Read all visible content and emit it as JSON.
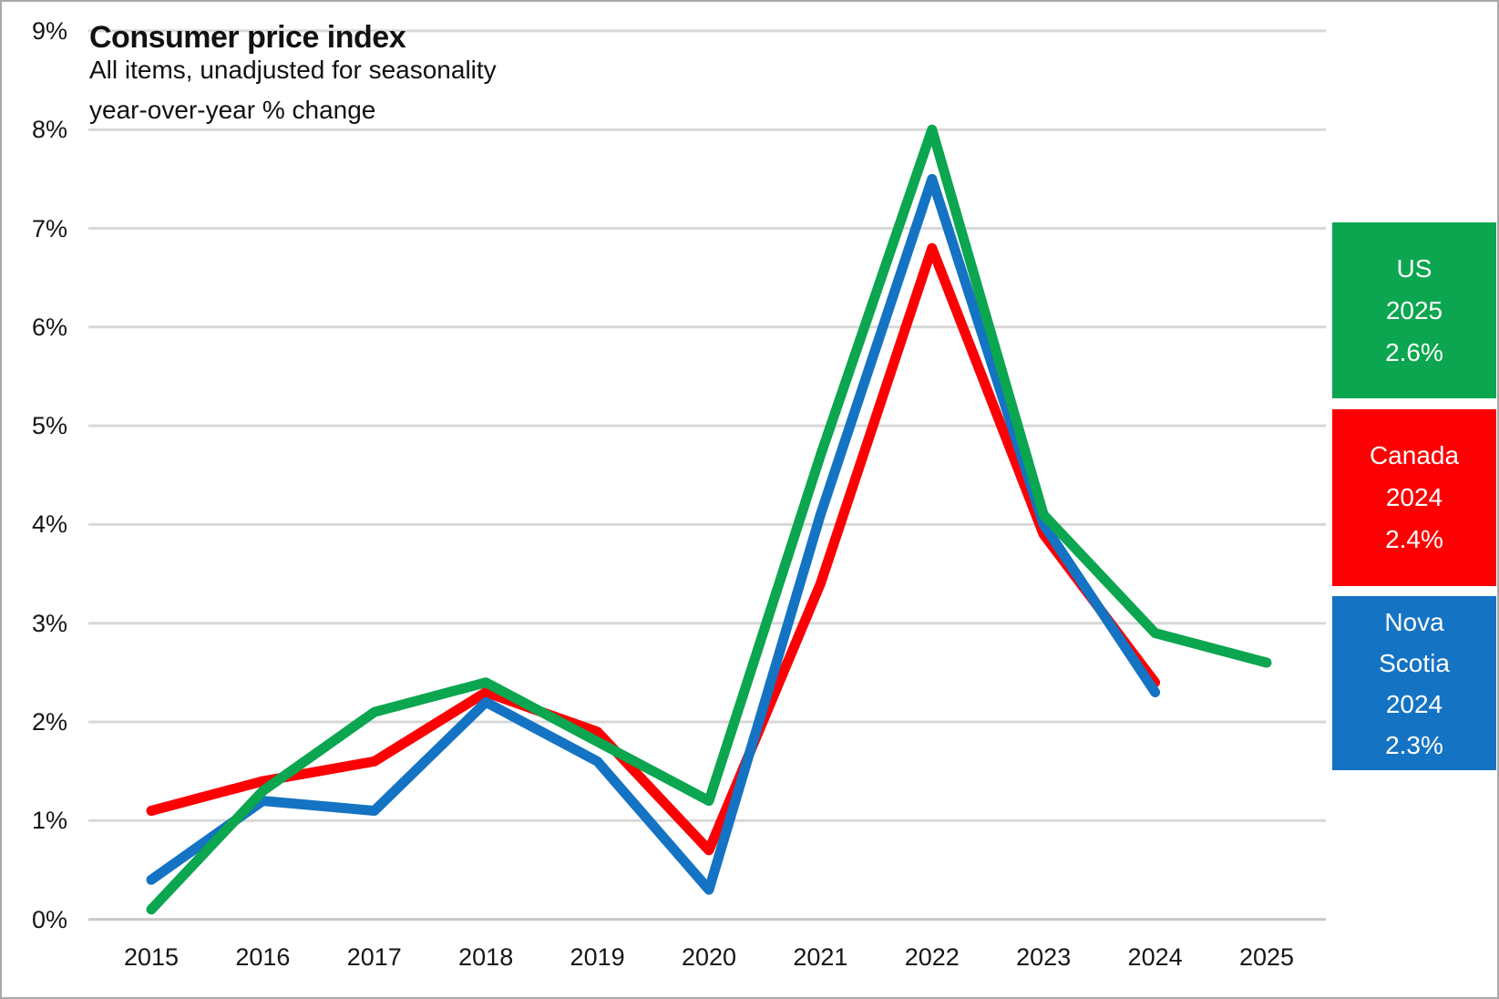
{
  "title": "Consumer price index",
  "subtitle_line1": "All items, unadjusted for seasonality",
  "subtitle_line2": "year-over-year % change",
  "colors": {
    "us_green": "#0BA64F",
    "canada_red": "#FB0104",
    "nova_scotia_blue": "#1573C4",
    "gridline": "#D8D8D8",
    "baseline": "#C9C9C9",
    "axis_text": "#161616",
    "legend_text": "#FFFFFF",
    "background": "#FFFFFF",
    "frame_border": "#A9A9A9"
  },
  "chart_data": {
    "type": "line",
    "title": "Consumer price index",
    "subtitle": "All items, unadjusted for seasonality year-over-year % change",
    "x": [
      2015,
      2016,
      2017,
      2018,
      2019,
      2020,
      2021,
      2022,
      2023,
      2024,
      2025
    ],
    "xticklabels": [
      "2015",
      "2016",
      "2017",
      "2018",
      "2019",
      "2020",
      "2021",
      "2022",
      "2023",
      "2024",
      "2025"
    ],
    "series": [
      {
        "name": "Canada",
        "color_key": "canada_red",
        "values": [
          1.1,
          1.4,
          1.6,
          2.3,
          1.9,
          0.7,
          3.4,
          6.8,
          3.9,
          2.4,
          null
        ]
      },
      {
        "name": "Nova Scotia",
        "color_key": "nova_scotia_blue",
        "values": [
          0.4,
          1.2,
          1.1,
          2.2,
          1.6,
          0.3,
          4.1,
          7.5,
          4.0,
          2.3,
          null
        ]
      },
      {
        "name": "US",
        "color_key": "us_green",
        "values": [
          0.1,
          1.3,
          2.1,
          2.4,
          1.8,
          1.2,
          4.7,
          8.0,
          4.1,
          2.9,
          2.6
        ]
      }
    ],
    "ylim": [
      0,
      9
    ],
    "yticks": [
      0,
      1,
      2,
      3,
      4,
      5,
      6,
      7,
      8,
      9
    ],
    "yticklabels": [
      "0%",
      "1%",
      "2%",
      "3%",
      "4%",
      "5%",
      "6%",
      "7%",
      "8%",
      "9%"
    ],
    "grid": true,
    "legend_position": "right"
  },
  "legend": {
    "boxes": [
      {
        "key": "us",
        "color_key": "us_green",
        "lines": [
          "US",
          "2025",
          "2.6%"
        ]
      },
      {
        "key": "canada",
        "color_key": "canada_red",
        "lines": [
          "Canada",
          "2024",
          "2.4%"
        ]
      },
      {
        "key": "nova-scotia",
        "color_key": "nova_scotia_blue",
        "lines": [
          "Nova",
          "Scotia",
          "2024",
          "2.3%"
        ]
      }
    ]
  }
}
